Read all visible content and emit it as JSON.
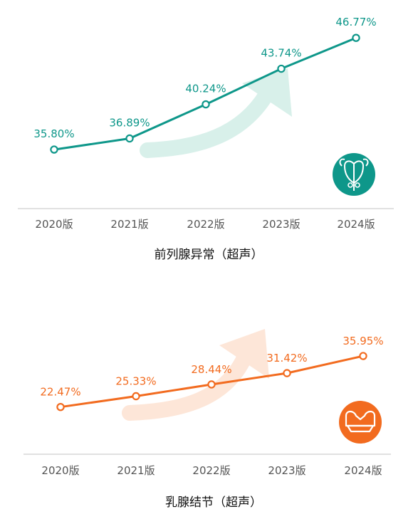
{
  "colors": {
    "chart1_line": "#0e978a",
    "chart1_arrow": "#d8f0ea",
    "chart2_line": "#f26b1f",
    "chart2_arrow": "#fde6d8",
    "axis": "#cfcfcf",
    "tick_text": "#555555",
    "title_text": "#111111"
  },
  "chart_data": [
    {
      "type": "line",
      "title": "前列腺异常（超声）",
      "categories": [
        "2020版",
        "2021版",
        "2022版",
        "2023版",
        "2024版"
      ],
      "values": [
        35.8,
        36.89,
        40.24,
        43.74,
        46.77
      ],
      "data_labels": [
        "35.80%",
        "36.89%",
        "40.24%",
        "43.74%",
        "46.77%"
      ],
      "unit": "%",
      "ylim": [
        30,
        48
      ],
      "grid": false,
      "icon": "prostate-icon"
    },
    {
      "type": "line",
      "title": "乳腺结节（超声）",
      "categories": [
        "2020版",
        "2021版",
        "2022版",
        "2023版",
        "2024版"
      ],
      "values": [
        22.47,
        25.33,
        28.44,
        31.42,
        35.95
      ],
      "data_labels": [
        "22.47%",
        "25.33%",
        "28.44%",
        "31.42%",
        "35.95%"
      ],
      "unit": "%",
      "ylim": [
        10,
        38
      ],
      "grid": false,
      "icon": "breast-icon"
    }
  ]
}
